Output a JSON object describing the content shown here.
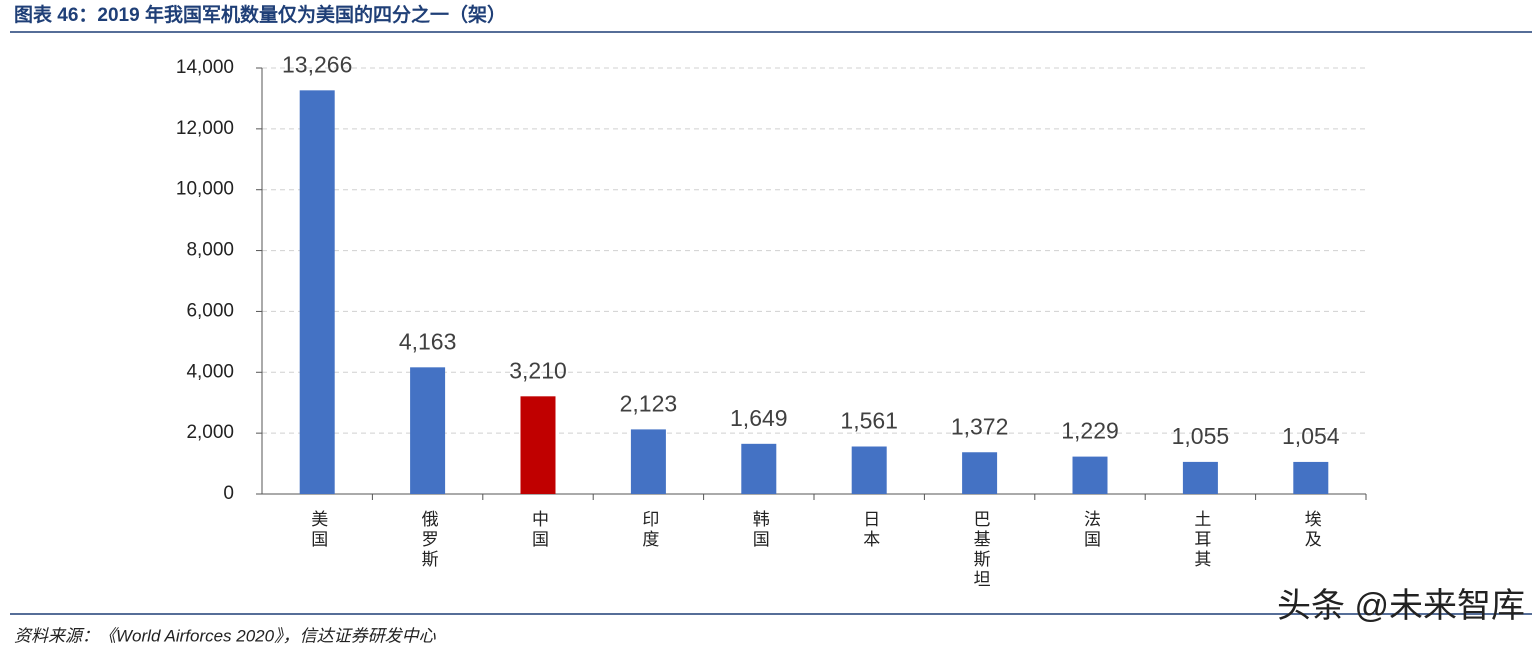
{
  "chart_data": {
    "type": "bar",
    "title": "图表 46：2019 年我国军机数量仅为美国的四分之一（架）",
    "categories": [
      "美国",
      "俄罗斯",
      "中国",
      "印度",
      "韩国",
      "日本",
      "巴基斯坦",
      "法国",
      "土耳其",
      "埃及"
    ],
    "values": [
      13266,
      4163,
      3210,
      2123,
      1649,
      1561,
      1372,
      1229,
      1055,
      1054
    ],
    "value_labels": [
      "13,266",
      "4,163",
      "3,210",
      "2,123",
      "1,649",
      "1,561",
      "1,372",
      "1,229",
      "1,055",
      "1,054"
    ],
    "colors": [
      "#4472c4",
      "#4472c4",
      "#c00000",
      "#4472c4",
      "#4472c4",
      "#4472c4",
      "#4472c4",
      "#4472c4",
      "#4472c4",
      "#4472c4"
    ],
    "ylim": [
      0,
      14000
    ],
    "yticks": [
      0,
      {
        "value": 2000,
        "label": "2,000"
      },
      {
        "value": 4000,
        "label": "4,000"
      },
      {
        "value": 6000,
        "label": "6,000"
      },
      {
        "value": 8000,
        "label": "8,000"
      },
      {
        "value": 10000,
        "label": "10,000"
      },
      {
        "value": 12000,
        "label": "12,000"
      },
      {
        "value": 14000,
        "label": "14,000"
      }
    ],
    "grid": true,
    "source": "资料来源：《World Airforces 2020》，信达证券研发中心",
    "watermark": "头条 @未来智库"
  }
}
